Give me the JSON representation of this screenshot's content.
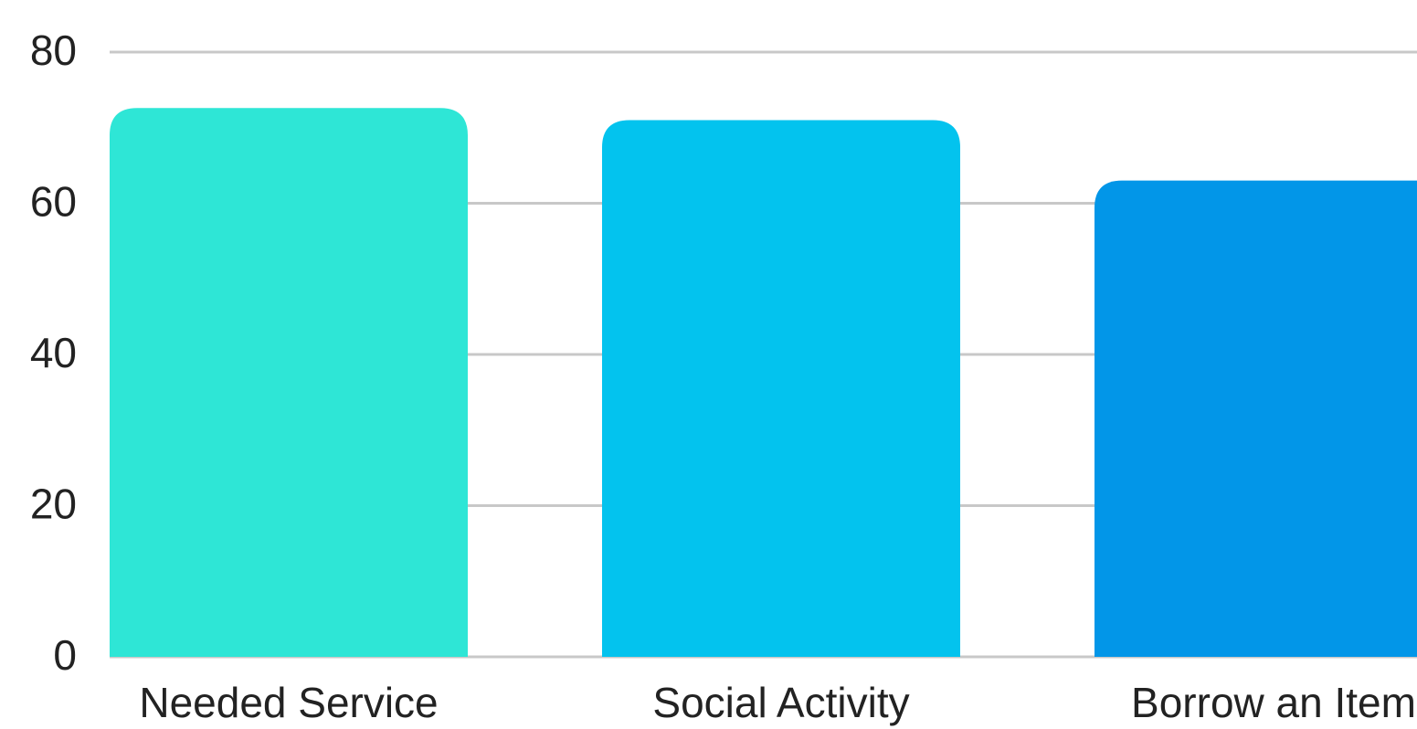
{
  "chart_data": {
    "type": "bar",
    "categories": [
      "Needed Service",
      "Social Activity",
      "Borrow an Item"
    ],
    "values": [
      72.6,
      71,
      63
    ],
    "colors": [
      "#2ee6d6",
      "#03c3ee",
      "#0296e8"
    ],
    "ylim": [
      0,
      80
    ],
    "yticks": [
      0,
      20,
      40,
      60,
      80
    ],
    "grid": true
  }
}
